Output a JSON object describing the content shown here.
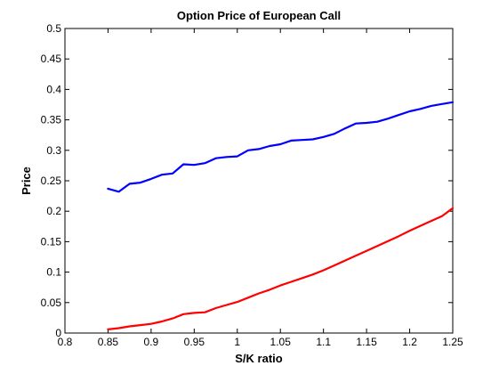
{
  "chart_data": {
    "type": "line",
    "title": "Option Price of European Call",
    "xlabel": "S/K ratio",
    "ylabel": "Price",
    "xlim": [
      0.8,
      1.25
    ],
    "ylim": [
      0,
      0.5
    ],
    "x_ticks": [
      "0.8",
      "0.85",
      "0.9",
      "0.95",
      "1",
      "1.05",
      "1.1",
      "1.15",
      "1.2",
      "1.25"
    ],
    "x_tick_values": [
      0.8,
      0.85,
      0.9,
      0.95,
      1.0,
      1.05,
      1.1,
      1.15,
      1.2,
      1.25
    ],
    "y_ticks": [
      "0",
      "0.05",
      "0.1",
      "0.15",
      "0.2",
      "0.25",
      "0.3",
      "0.35",
      "0.4",
      "0.45",
      "0.5"
    ],
    "y_tick_values": [
      0,
      0.05,
      0.1,
      0.15,
      0.2,
      0.25,
      0.3,
      0.35,
      0.4,
      0.45,
      0.5
    ],
    "grid": false,
    "series": [
      {
        "color": "#0000ff",
        "x": [
          0.85,
          0.8625,
          0.875,
          0.8875,
          0.9,
          0.9125,
          0.925,
          0.9375,
          0.95,
          0.9625,
          0.975,
          0.9875,
          1.0,
          1.0125,
          1.025,
          1.0375,
          1.05,
          1.0625,
          1.075,
          1.0875,
          1.1,
          1.1125,
          1.125,
          1.1375,
          1.15,
          1.1625,
          1.175,
          1.1875,
          1.2,
          1.2125,
          1.225,
          1.2375,
          1.25
        ],
        "y": [
          0.237,
          0.232,
          0.245,
          0.247,
          0.253,
          0.26,
          0.262,
          0.277,
          0.276,
          0.279,
          0.287,
          0.289,
          0.29,
          0.3,
          0.302,
          0.307,
          0.31,
          0.316,
          0.317,
          0.318,
          0.322,
          0.327,
          0.336,
          0.344,
          0.345,
          0.347,
          0.352,
          0.358,
          0.364,
          0.368,
          0.373,
          0.376,
          0.379
        ]
      },
      {
        "color": "#ff0000",
        "x": [
          0.85,
          0.8625,
          0.875,
          0.8875,
          0.9,
          0.9125,
          0.925,
          0.9375,
          0.95,
          0.9625,
          0.975,
          0.9875,
          1.0,
          1.0125,
          1.025,
          1.0375,
          1.05,
          1.0625,
          1.075,
          1.0875,
          1.1,
          1.1125,
          1.125,
          1.1375,
          1.15,
          1.1625,
          1.175,
          1.1875,
          1.2,
          1.2125,
          1.225,
          1.2375,
          1.25
        ],
        "y": [
          0.006,
          0.008,
          0.011,
          0.013,
          0.015,
          0.019,
          0.024,
          0.031,
          0.033,
          0.034,
          0.041,
          0.046,
          0.051,
          0.058,
          0.065,
          0.071,
          0.078,
          0.084,
          0.09,
          0.096,
          0.103,
          0.111,
          0.119,
          0.127,
          0.135,
          0.143,
          0.151,
          0.159,
          0.168,
          0.176,
          0.184,
          0.192,
          0.205
        ]
      }
    ]
  }
}
